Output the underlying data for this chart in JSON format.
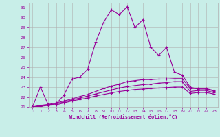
{
  "title": "",
  "xlabel": "Windchill (Refroidissement éolien,°C)",
  "background_color": "#c8eee8",
  "line_color": "#990099",
  "grid_color": "#b0b0b0",
  "xlim": [
    -0.5,
    23.5
  ],
  "ylim": [
    21.0,
    31.5
  ],
  "yticks": [
    21,
    22,
    23,
    24,
    25,
    26,
    27,
    28,
    29,
    30,
    31
  ],
  "xticks": [
    0,
    1,
    2,
    3,
    4,
    5,
    6,
    7,
    8,
    9,
    10,
    11,
    12,
    13,
    14,
    15,
    16,
    17,
    18,
    19,
    20,
    21,
    22,
    23
  ],
  "series1_x": [
    0,
    1,
    2,
    3,
    4,
    5,
    6,
    7,
    8,
    9,
    10,
    11,
    12,
    13,
    14,
    15,
    16,
    17,
    18,
    19,
    20,
    21,
    22,
    23
  ],
  "series1_y": [
    21.0,
    23.0,
    21.2,
    21.3,
    22.2,
    23.8,
    24.0,
    24.8,
    27.5,
    29.5,
    30.8,
    30.3,
    31.1,
    29.0,
    29.8,
    27.0,
    26.2,
    27.0,
    24.5,
    24.2,
    23.0,
    22.8,
    22.8,
    22.6
  ],
  "series2_x": [
    0,
    1,
    2,
    3,
    4,
    5,
    6,
    7,
    8,
    9,
    10,
    11,
    12,
    13,
    14,
    15,
    16,
    17,
    18,
    19,
    20,
    21,
    22,
    23
  ],
  "series2_y": [
    21.0,
    21.15,
    21.25,
    21.4,
    21.6,
    21.8,
    22.05,
    22.25,
    22.55,
    22.85,
    23.1,
    23.3,
    23.55,
    23.65,
    23.75,
    23.75,
    23.8,
    23.8,
    23.85,
    23.85,
    22.85,
    22.85,
    22.85,
    22.65
  ],
  "series3_x": [
    0,
    1,
    2,
    3,
    4,
    5,
    6,
    7,
    8,
    9,
    10,
    11,
    12,
    13,
    14,
    15,
    16,
    17,
    18,
    19,
    20,
    21,
    22,
    23
  ],
  "series3_y": [
    21.0,
    21.1,
    21.2,
    21.3,
    21.5,
    21.7,
    21.9,
    22.1,
    22.3,
    22.5,
    22.7,
    22.9,
    23.05,
    23.15,
    23.25,
    23.3,
    23.4,
    23.45,
    23.55,
    23.55,
    22.55,
    22.65,
    22.65,
    22.45
  ],
  "series4_x": [
    0,
    1,
    2,
    3,
    4,
    5,
    6,
    7,
    8,
    9,
    10,
    11,
    12,
    13,
    14,
    15,
    16,
    17,
    18,
    19,
    20,
    21,
    22,
    23
  ],
  "series4_y": [
    21.0,
    21.05,
    21.15,
    21.2,
    21.4,
    21.6,
    21.75,
    21.9,
    22.1,
    22.25,
    22.4,
    22.55,
    22.65,
    22.75,
    22.8,
    22.85,
    22.9,
    22.95,
    23.0,
    23.0,
    22.35,
    22.45,
    22.45,
    22.3
  ]
}
